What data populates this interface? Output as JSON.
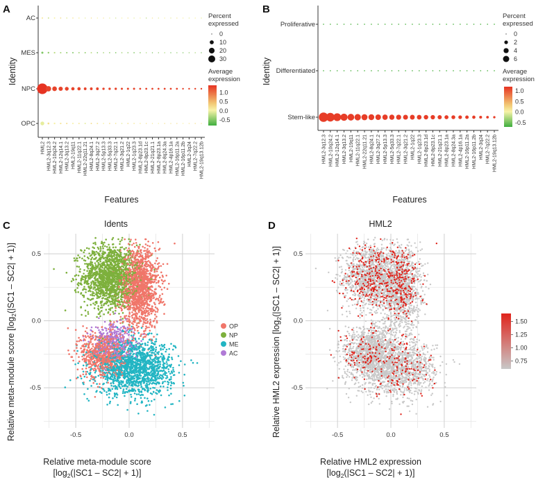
{
  "chart_data": [
    {
      "panel": "A",
      "type": "scatter",
      "subtype": "dot-plot",
      "xlabel": "Features",
      "ylabel": "Identity",
      "categories": [
        "HML2",
        "HML2-3q12.3",
        "HML2-10q24.2",
        "HML2-12q14.1",
        "HML2-3q13.2",
        "HML2-19q11",
        "HML2-11q22.1",
        "HML2-22q11.21",
        "HML2-8q24.1",
        "HML2-3q27.2",
        "HML2-5p13.3",
        "HML2-5q33.3",
        "HML2-7q22.1",
        "HML2-3q21.2",
        "HML2-1q22",
        "HML2-1q23.3",
        "HML2-8p23.1d",
        "HML2-8p23.1c",
        "HML2-21q21.1",
        "HML2-8p23.1a",
        "HML2-8q24.3a",
        "HML2-4p16.1a",
        "HML2-16p11.2a",
        "HML2-16p11.2b",
        "HML2-3q24",
        "HML2-7q22.2",
        "HML2-19q13.12b"
      ],
      "identities": [
        "AC",
        "MES",
        "NPC",
        "OPC"
      ],
      "series": [
        {
          "name": "AC",
          "pct": [
            0.6,
            0.5,
            0.5,
            0.4,
            0.4,
            0.4,
            0.4,
            0.3,
            0.3,
            0.3,
            0.3,
            0.3,
            0.3,
            0.3,
            0.3,
            0.3,
            0.3,
            0.3,
            0.3,
            0.3,
            0.3,
            0.3,
            0.3,
            0.3,
            0.3,
            0.3,
            0.3
          ],
          "avg": [
            0.2,
            -0.1,
            0.1,
            0.3,
            0.0,
            0.2,
            0.1,
            0.0,
            0.3,
            0.1,
            0.2,
            0.0,
            -0.1,
            0.1,
            0.2,
            0.0,
            0.1,
            -0.2,
            0.2,
            0.0,
            0.1,
            0.0,
            0.2,
            0.1,
            0.0,
            0.1,
            0.0
          ]
        },
        {
          "name": "MES",
          "pct": [
            1.2,
            0.8,
            0.7,
            0.6,
            0.6,
            0.5,
            0.5,
            0.5,
            0.5,
            0.4,
            0.4,
            0.4,
            0.4,
            0.4,
            0.4,
            0.4,
            0.4,
            0.3,
            0.3,
            0.3,
            0.3,
            0.3,
            0.3,
            0.3,
            0.3,
            0.3,
            0.3
          ],
          "avg": [
            -0.5,
            -0.4,
            -0.2,
            -0.3,
            -0.4,
            -0.5,
            -0.3,
            -0.4,
            -0.2,
            -0.5,
            -0.3,
            -0.4,
            -0.5,
            -0.3,
            -0.4,
            -0.5,
            -0.4,
            -0.3,
            -0.5,
            -0.4,
            -0.3,
            -0.5,
            -0.4,
            -0.5,
            -0.4,
            -0.3,
            -0.5
          ]
        },
        {
          "name": "NPC",
          "pct": [
            31,
            8,
            6,
            5,
            4,
            3,
            3,
            2,
            2,
            2,
            1.5,
            1.5,
            1.5,
            1.2,
            1.2,
            1.2,
            1,
            1,
            1,
            1,
            1,
            1,
            1,
            0.8,
            0.8,
            0.8,
            0.8
          ],
          "avg": [
            1.4,
            1.3,
            1.3,
            1.3,
            1.3,
            1.3,
            1.3,
            1.3,
            1.3,
            1.3,
            1.3,
            1.3,
            1.3,
            1.3,
            1.3,
            1.3,
            1.3,
            1.3,
            1.3,
            1.3,
            1.3,
            1.3,
            1.3,
            1.3,
            1.3,
            1.3,
            1.3
          ]
        },
        {
          "name": "OPC",
          "pct": [
            4,
            1,
            0.8,
            0.7,
            0.6,
            0.6,
            0.5,
            0.5,
            0.5,
            0.5,
            0.4,
            0.4,
            0.4,
            0.4,
            0.4,
            0.4,
            0.4,
            0.3,
            0.3,
            0.3,
            0.3,
            0.3,
            0.3,
            0.3,
            0.3,
            0.3,
            0.3
          ],
          "avg": [
            0.0,
            0.3,
            0.1,
            0.2,
            0.3,
            0.1,
            0.2,
            0.0,
            0.3,
            0.2,
            0.1,
            0.3,
            0.2,
            0.0,
            0.3,
            0.2,
            0.1,
            0.3,
            0.2,
            0.1,
            0.3,
            0.2,
            0.3,
            0.1,
            0.2,
            0.3,
            0.2
          ]
        }
      ],
      "size_legend": {
        "title": "Percent expressed",
        "values": [
          0,
          10,
          20,
          30
        ]
      },
      "color_legend": {
        "title": "Average expression",
        "ticks": [
          1.0,
          0.5,
          0.0,
          -0.5
        ],
        "tick_labels": [
          "1.0",
          "0.5",
          "0.0",
          "-0.5"
        ],
        "range": [
          -0.8,
          1.4
        ]
      }
    },
    {
      "panel": "B",
      "type": "scatter",
      "subtype": "dot-plot",
      "xlabel": "Features",
      "ylabel": "Identity",
      "categories": [
        "HML2-3q12.3",
        "HML2-10q24.2",
        "HML2-12q14.1",
        "HML2-3q13.2",
        "HML2-19q11",
        "HML2-11q22.1",
        "HML2-22q11.21",
        "HML2-8q24.1",
        "HML2-3q27.2",
        "HML2-5p13.3",
        "HML2-5q33.3",
        "HML2-7q22.1",
        "HML2-3q21.2",
        "HML2-1q22",
        "HML2-1q23.3",
        "HML2-8p23.1d",
        "HML2-8p23.1c",
        "HML2-21q21.1",
        "HML2-8p23.1a",
        "HML2-8q24.3a",
        "HML2-4p16.1a",
        "HML2-16p11.2a",
        "HML2-16p11.2b",
        "HML2-3q24",
        "HML2-7q22.2",
        "HML2-19q13.12b"
      ],
      "identities": [
        "Proliferative",
        "Differentiated",
        "Stem-like"
      ],
      "series": [
        {
          "name": "Proliferative",
          "pct": [
            0.1,
            0.1,
            0.1,
            0.1,
            0.1,
            0.1,
            0.1,
            0.1,
            0.1,
            0.1,
            0.1,
            0.1,
            0.1,
            0.1,
            0.1,
            0.1,
            0.1,
            0.1,
            0.1,
            0.1,
            0.1,
            0.1,
            0.1,
            0.1,
            0.1,
            0.1
          ],
          "avg": [
            -0.6,
            -0.6,
            -0.6,
            -0.6,
            -0.6,
            -0.6,
            -0.6,
            -0.6,
            -0.6,
            -0.6,
            -0.6,
            -0.6,
            -0.6,
            -0.6,
            -0.6,
            -0.6,
            -0.6,
            -0.6,
            -0.6,
            -0.6,
            -0.6,
            -0.6,
            -0.6,
            -0.6,
            -0.6,
            -0.6
          ]
        },
        {
          "name": "Differentiated",
          "pct": [
            0.1,
            0.1,
            0.1,
            0.1,
            0.1,
            0.1,
            0.1,
            0.1,
            0.1,
            0.1,
            0.1,
            0.1,
            0.1,
            0.1,
            0.1,
            0.1,
            0.1,
            0.1,
            0.1,
            0.1,
            0.1,
            0.1,
            0.1,
            0.1,
            0.1,
            0.1
          ],
          "avg": [
            -0.6,
            -0.6,
            -0.6,
            -0.6,
            -0.6,
            -0.6,
            -0.6,
            -0.6,
            -0.6,
            -0.6,
            -0.6,
            -0.6,
            -0.6,
            -0.6,
            -0.6,
            -0.6,
            -0.6,
            -0.6,
            -0.6,
            -0.6,
            -0.6,
            -0.6,
            -0.6,
            -0.6,
            -0.6,
            -0.6
          ]
        },
        {
          "name": "Stem-like",
          "pct": [
            6.5,
            5.5,
            4.5,
            3.8,
            3.3,
            3.0,
            2.7,
            2.5,
            2.3,
            2.1,
            2.0,
            1.9,
            1.8,
            1.7,
            1.6,
            1.5,
            1.4,
            1.3,
            1.2,
            1.1,
            1.0,
            0.9,
            0.8,
            0.6,
            0.5,
            0.4
          ],
          "avg": [
            1.15,
            1.15,
            1.15,
            1.15,
            1.15,
            1.15,
            1.15,
            1.15,
            1.15,
            1.15,
            1.15,
            1.15,
            1.15,
            1.15,
            1.15,
            1.15,
            1.15,
            1.15,
            1.15,
            1.15,
            1.15,
            1.15,
            1.15,
            1.15,
            1.15,
            1.15
          ]
        }
      ],
      "size_legend": {
        "title": "Percent expressed",
        "values": [
          0,
          2,
          4,
          6
        ]
      },
      "color_legend": {
        "title": "Average expression",
        "ticks": [
          1.0,
          0.5,
          0.0,
          -0.5
        ],
        "tick_labels": [
          "1.0",
          "0.5",
          "0.0",
          "-0.5"
        ],
        "range": [
          -0.7,
          1.2
        ]
      }
    },
    {
      "panel": "C",
      "type": "scatter",
      "title": "Idents",
      "xlabel_line1": "Relative meta-module score",
      "xlabel_line2": "[log2(|SC1 – SC2| + 1)]",
      "ylabel": "Relative meta-module score [log2(|SC1 – SC2| + 1)]",
      "xlim": [
        -0.8,
        0.8
      ],
      "ylim": [
        -0.8,
        0.65
      ],
      "xticks": [
        -0.5,
        0.0,
        0.5
      ],
      "yticks": [
        -0.5,
        0.0,
        0.5
      ],
      "tick_labels_x": [
        "-0.5",
        "0.0",
        "0.5"
      ],
      "tick_labels_y": [
        "-0.5",
        "0.0",
        "0.5"
      ],
      "grid": true,
      "legend": [
        {
          "name": "OP",
          "color": "#f0766a"
        },
        {
          "name": "NP",
          "color": "#7db03c"
        },
        {
          "name": "ME",
          "color": "#22b5c3"
        },
        {
          "name": "AC",
          "color": "#b07ad6"
        }
      ],
      "clusters": [
        {
          "name": "NP",
          "center": [
            -0.18,
            0.33
          ],
          "spread": [
            0.13,
            0.12
          ],
          "n": 1500
        },
        {
          "name": "OP",
          "center": [
            0.1,
            0.25
          ],
          "spread": [
            0.09,
            0.15
          ],
          "n": 1400
        },
        {
          "name": "ME",
          "center": [
            0.05,
            -0.35
          ],
          "spread": [
            0.18,
            0.1
          ],
          "n": 1600
        },
        {
          "name": "OP",
          "center": [
            -0.25,
            -0.25
          ],
          "spread": [
            0.1,
            0.09
          ],
          "n": 700
        },
        {
          "name": "AC",
          "center": [
            -0.15,
            -0.15
          ],
          "spread": [
            0.1,
            0.07
          ],
          "n": 350
        }
      ]
    },
    {
      "panel": "D",
      "type": "scatter",
      "title": "HML2",
      "xlabel_line1": "Relative HML2 expression",
      "xlabel_line2": "[log2(|SC1 – SC2| + 1)]",
      "ylabel": "Relative HML2 expression [log2(|SC1 – SC2| + 1)]",
      "xlim": [
        -0.8,
        0.8
      ],
      "ylim": [
        -0.8,
        0.65
      ],
      "xticks": [
        -0.5,
        0.0,
        0.5
      ],
      "yticks": [
        -0.5,
        0.0,
        0.5
      ],
      "tick_labels_x": [
        "-0.5",
        "0.0",
        "0.5"
      ],
      "tick_labels_y": [
        "-0.5",
        "0.0",
        "0.5"
      ],
      "grid": true,
      "colorbar": {
        "ticks": [
          1.5,
          1.25,
          1.0,
          0.75
        ],
        "tick_labels": [
          "1.50",
          "1.25",
          "1.00",
          "0.75"
        ],
        "range": [
          0.6,
          1.65
        ],
        "low_color": "#c8c8c8",
        "high_color": "#e0241c"
      },
      "n_points": 5500,
      "fraction_expressing": 0.12
    }
  ]
}
